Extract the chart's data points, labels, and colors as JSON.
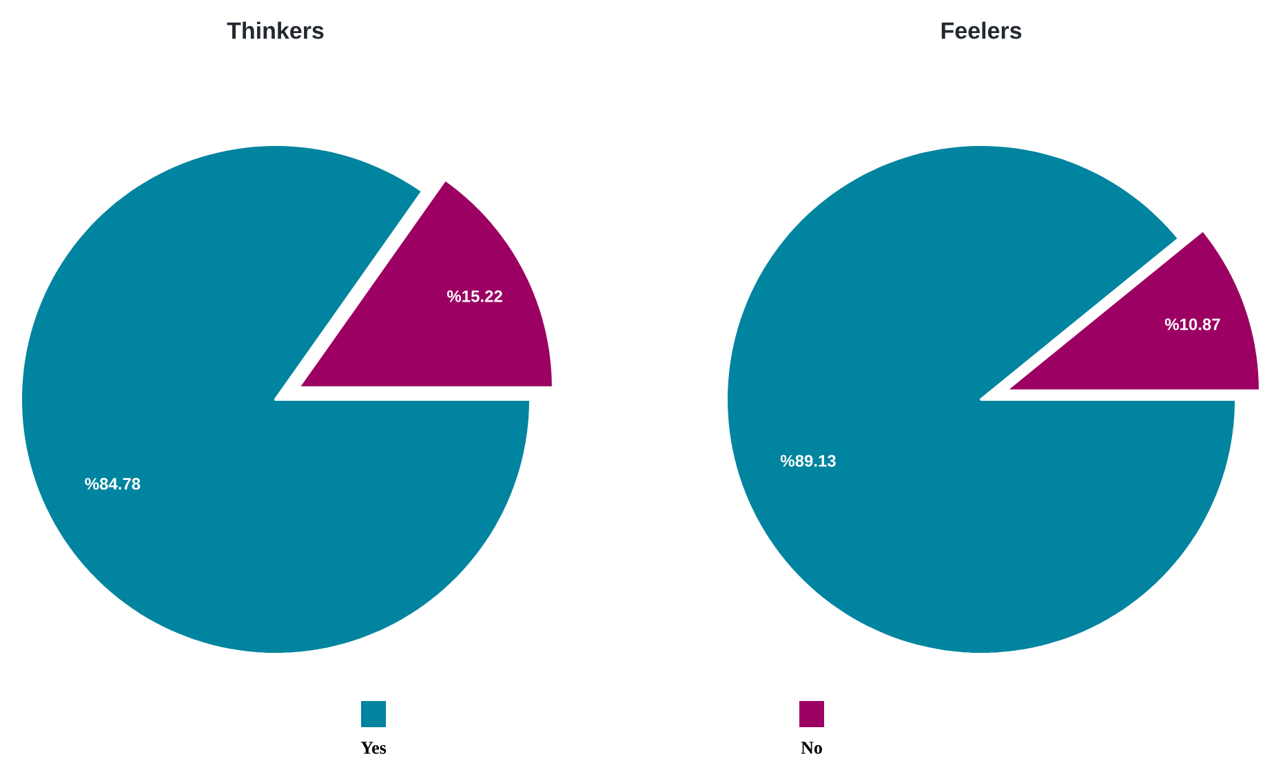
{
  "chart_data": [
    {
      "type": "pie",
      "title": "Thinkers",
      "categories": [
        "Yes",
        "No"
      ],
      "values": [
        84.78,
        15.22
      ],
      "colors": [
        "#00849f",
        "#9c0062"
      ],
      "value_labels": [
        "%84.78",
        "%15.22"
      ],
      "legend": "bottom"
    },
    {
      "type": "pie",
      "title": "Feelers",
      "categories": [
        null,
        null
      ],
      "values": [
        89.13,
        10.87
      ],
      "colors": [
        "#00849f",
        "#9c0062"
      ],
      "value_labels": [
        "%89.13",
        "%10.87"
      ]
    }
  ]
}
